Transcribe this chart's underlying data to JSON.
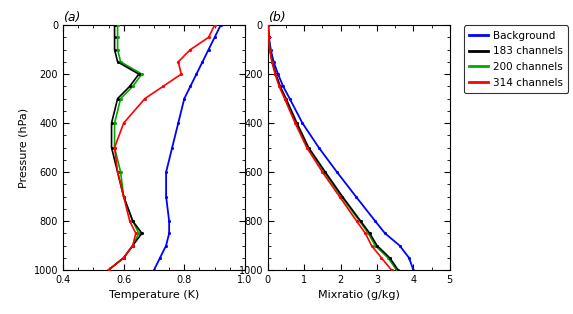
{
  "pressure": [
    0,
    50,
    100,
    150,
    200,
    250,
    300,
    400,
    500,
    600,
    700,
    800,
    850,
    900,
    950,
    1000
  ],
  "temp_background": [
    0.92,
    0.9,
    0.88,
    0.86,
    0.84,
    0.82,
    0.8,
    0.78,
    0.76,
    0.74,
    0.74,
    0.75,
    0.75,
    0.74,
    0.72,
    0.7
  ],
  "temp_183ch": [
    0.57,
    0.57,
    0.57,
    0.58,
    0.65,
    0.62,
    0.58,
    0.56,
    0.56,
    0.58,
    0.6,
    0.63,
    0.66,
    0.63,
    0.6,
    0.55
  ],
  "temp_200ch": [
    0.58,
    0.58,
    0.58,
    0.59,
    0.66,
    0.63,
    0.59,
    0.57,
    0.57,
    0.59,
    0.6,
    0.63,
    0.65,
    0.63,
    0.6,
    0.55
  ],
  "temp_314ch": [
    0.9,
    0.88,
    0.82,
    0.78,
    0.79,
    0.73,
    0.67,
    0.6,
    0.57,
    0.58,
    0.6,
    0.62,
    0.64,
    0.63,
    0.6,
    0.55
  ],
  "mix_background": [
    0.01,
    0.03,
    0.08,
    0.16,
    0.28,
    0.42,
    0.6,
    0.95,
    1.4,
    1.9,
    2.42,
    2.95,
    3.22,
    3.62,
    3.88,
    4.0
  ],
  "mix_183ch": [
    0.01,
    0.02,
    0.06,
    0.12,
    0.22,
    0.34,
    0.5,
    0.8,
    1.12,
    1.58,
    2.05,
    2.55,
    2.8,
    3.0,
    3.35,
    3.58
  ],
  "mix_200ch": [
    0.01,
    0.02,
    0.06,
    0.12,
    0.21,
    0.33,
    0.48,
    0.78,
    1.1,
    1.55,
    2.02,
    2.52,
    2.76,
    2.95,
    3.3,
    3.54
  ],
  "mix_314ch": [
    0.01,
    0.02,
    0.05,
    0.11,
    0.2,
    0.31,
    0.46,
    0.75,
    1.07,
    1.5,
    1.97,
    2.44,
    2.68,
    2.85,
    3.12,
    3.4
  ],
  "color_background": "#0000ff",
  "color_183ch": "#000000",
  "color_200ch": "#00aa00",
  "color_314ch": "#ff0000",
  "temp_xlim": [
    0.4,
    1.0
  ],
  "temp_xticks": [
    0.4,
    0.6,
    0.8,
    1.0
  ],
  "mix_xlim": [
    0,
    5
  ],
  "mix_xticks": [
    0,
    1,
    2,
    3,
    4,
    5
  ],
  "ylim": [
    1000,
    0
  ],
  "yticks": [
    0,
    200,
    400,
    600,
    800,
    1000
  ],
  "ylabel": "Pressure (hPa)",
  "xlabel_temp": "Temperature (K)",
  "xlabel_mix": "Mixratio (g/kg)",
  "label_a": "(a)",
  "label_b": "(b)",
  "legend_labels": [
    "Background",
    "183 channels",
    "200 channels",
    "314 channels"
  ],
  "legend_colors": [
    "#0000ff",
    "#000000",
    "#00aa00",
    "#ff0000"
  ],
  "bg_facecolor": "#ffffff",
  "ax_facecolor": "#ffffff",
  "linewidth": 1.2,
  "bg_linewidth": 1.3,
  "marker": ".",
  "markersize": 2.5,
  "tick_labelsize": 7,
  "axis_labelsize": 8
}
